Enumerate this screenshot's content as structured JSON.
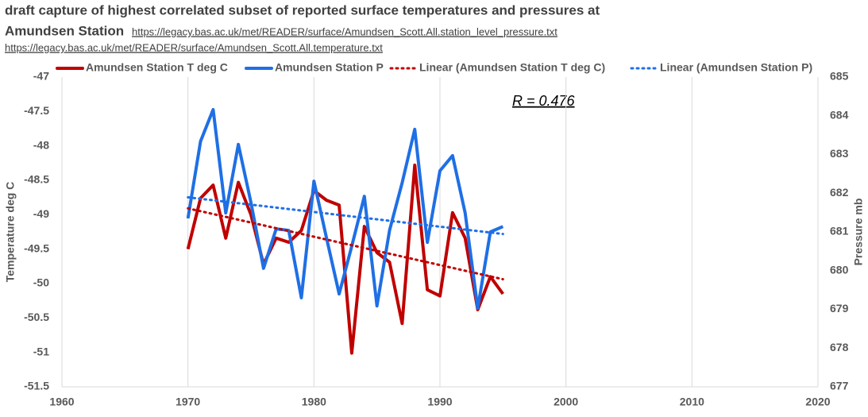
{
  "chart_data": {
    "type": "line",
    "title_lines": [
      "draft capture of  highest correlated subset of reported surface temperatures and pressures at",
      "Amundsen Station"
    ],
    "sources": [
      "https://legacy.bas.ac.uk/met/READER/surface/Amundsen_Scott.All.station_level_pressure.txt",
      "https://legacy.bas.ac.uk/met/READER/surface/Amundsen_Scott.All.temperature.txt"
    ],
    "annotation": "R = 0.476",
    "y_label": "Temperature deg C",
    "y2_label": "Pressure mb",
    "x": [
      1970,
      1971,
      1972,
      1973,
      1974,
      1975,
      1976,
      1977,
      1978,
      1979,
      1980,
      1981,
      1982,
      1983,
      1984,
      1985,
      1986,
      1987,
      1988,
      1989,
      1990,
      1991,
      1992,
      1993,
      1994,
      1995
    ],
    "series": [
      {
        "name": "Amundsen Station T deg C",
        "color": "#c00000",
        "values": [
          -49.5,
          -48.76,
          -48.57,
          -49.34,
          -48.53,
          -49.0,
          -49.72,
          -49.34,
          -49.4,
          -49.23,
          -48.65,
          -48.79,
          -48.86,
          -51.01,
          -49.17,
          -49.55,
          -49.69,
          -50.58,
          -48.28,
          -50.09,
          -50.18,
          -48.97,
          -49.34,
          -50.38,
          -49.9,
          -50.15
        ]
      },
      {
        "name": "Amundsen Station P",
        "color": "#1f6fe5",
        "axis": "y2",
        "values": [
          681.35,
          683.34,
          684.16,
          681.49,
          683.26,
          681.76,
          680.06,
          681.08,
          681.04,
          679.3,
          682.31,
          680.84,
          679.4,
          680.63,
          681.92,
          679.09,
          681.04,
          682.27,
          683.65,
          680.73,
          682.58,
          682.97,
          681.49,
          679.03,
          681.0,
          681.14
        ]
      }
    ],
    "trendlines": [
      {
        "name": "Linear (Amundsen Station T deg C)",
        "of": 0
      },
      {
        "name": "Linear (Amundsen Station P)",
        "of": 1
      }
    ],
    "xlim": [
      1960,
      2020
    ],
    "xticks": [
      1960,
      1970,
      1980,
      1990,
      2000,
      2010,
      2020
    ],
    "ylim": [
      -51.5,
      -47
    ],
    "yticks": [
      -47,
      -47.5,
      -48,
      -48.5,
      -49,
      -49.5,
      -50,
      -50.5,
      -51,
      -51.5
    ],
    "y2lim": [
      677,
      685
    ],
    "y2ticks": [
      677,
      678,
      679,
      680,
      681,
      682,
      683,
      684,
      685
    ],
    "grid": "x"
  }
}
